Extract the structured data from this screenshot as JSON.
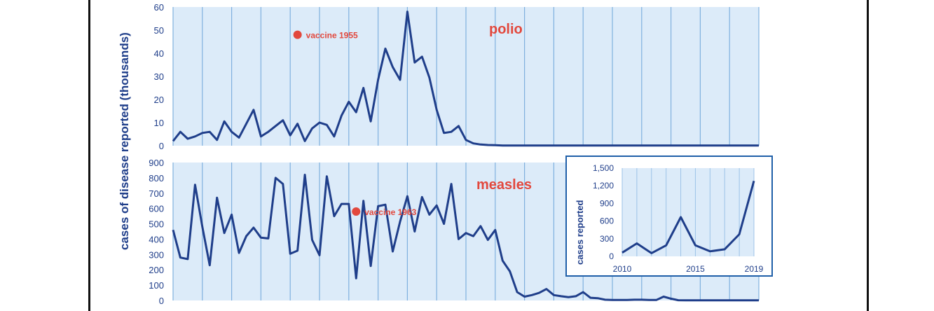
{
  "chart_data": [
    {
      "type": "line",
      "panel": "polio",
      "title": "polio",
      "ylabel": "cases of disease reported (thousands)",
      "ylim": [
        0,
        60
      ],
      "yticks": [
        "60",
        "50",
        "40",
        "30",
        "20",
        "10",
        "0"
      ],
      "grid": true,
      "annotation": {
        "label": "vaccine 1955",
        "x": 1955,
        "y": 48
      },
      "x_start": 1938,
      "values": [
        2,
        6,
        3,
        4,
        5.5,
        6,
        2.5,
        10.5,
        6,
        3.5,
        9.5,
        15.5,
        4,
        6,
        8.5,
        11,
        4.5,
        9.5,
        2,
        7.5,
        10,
        9,
        4,
        13,
        19,
        14.5,
        25,
        10.5,
        28.5,
        42,
        34,
        28.5,
        58,
        36,
        38.5,
        29.5,
        15.5,
        5.5,
        6,
        8.5,
        2.5,
        1,
        0.5,
        0.3,
        0.2,
        0.1,
        0.1,
        0.1,
        0.05,
        0.05,
        0.05,
        0.05,
        0.05,
        0.05,
        0.05,
        0.05,
        0.05,
        0.05,
        0.05,
        0.05,
        0.05,
        0.05,
        0.05,
        0.05,
        0.05,
        0.05,
        0.05,
        0.05,
        0.05,
        0.05,
        0.05,
        0.05,
        0.05,
        0.05,
        0.05,
        0.05,
        0.05,
        0.05,
        0.05,
        0.05,
        0.05,
        0.05,
        0.05,
        0.05
      ]
    },
    {
      "type": "line",
      "panel": "measles",
      "title": "measles",
      "ylim": [
        0,
        900
      ],
      "yticks": [
        "900",
        "800",
        "700",
        "600",
        "500",
        "400",
        "300",
        "200",
        "100",
        "0"
      ],
      "grid": true,
      "annotation": {
        "label": "vaccine 1963",
        "x": 1963,
        "y": 580
      },
      "x_start": 1938,
      "values": [
        460,
        280,
        270,
        755,
        480,
        230,
        670,
        440,
        560,
        310,
        420,
        475,
        410,
        405,
        800,
        760,
        305,
        325,
        820,
        395,
        295,
        810,
        550,
        630,
        630,
        145,
        650,
        225,
        615,
        625,
        320,
        515,
        680,
        450,
        675,
        560,
        620,
        500,
        760,
        400,
        440,
        420,
        485,
        395,
        460,
        260,
        190,
        55,
        25,
        35,
        50,
        75,
        35,
        28,
        22,
        28,
        55,
        18,
        15,
        5,
        3,
        3,
        3,
        5,
        5,
        3,
        3,
        25,
        12,
        2,
        1,
        1,
        1,
        1,
        1,
        1,
        1,
        1,
        1,
        1,
        1,
        1,
        1,
        1,
        1,
        1,
        1,
        1,
        1,
        1,
        1,
        1,
        1,
        1,
        1,
        1
      ]
    },
    {
      "type": "line",
      "panel": "measles-inset",
      "ylabel": "cases reported",
      "ylim": [
        0,
        1500
      ],
      "yticks": [
        "1,500",
        "1,200",
        "900",
        "600",
        "300",
        "0"
      ],
      "xticks": [
        "2010",
        "2015",
        "2019"
      ],
      "x": [
        2010,
        2011,
        2012,
        2013,
        2014,
        2015,
        2016,
        2017,
        2018,
        2019
      ],
      "values": [
        63,
        220,
        55,
        187,
        667,
        188,
        86,
        120,
        375,
        1282
      ]
    }
  ]
}
